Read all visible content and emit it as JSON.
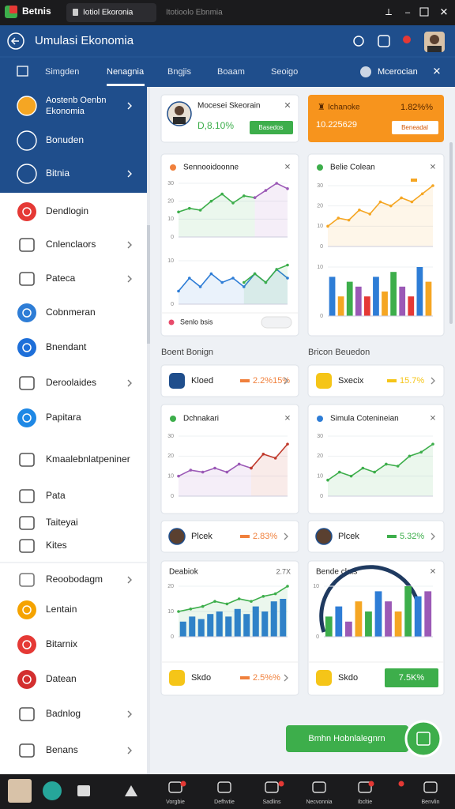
{
  "window": {
    "app": "Betnis",
    "tabs": [
      "Iotiol Ekoronia",
      "Itotioolo Ebnmia"
    ]
  },
  "header": {
    "title": "Umulasi Ekonomia"
  },
  "nav": {
    "tabs": [
      "Simgden",
      "Nenagnia",
      "Bngjis",
      "Boaam",
      "Seoigo"
    ],
    "active": 1,
    "account": "Mcerocian"
  },
  "sidebar": {
    "items": [
      {
        "label": "Aostenb Oenbn",
        "sublabel": "Ekonomia",
        "icon_color": "#f5a623",
        "chevron": true
      },
      {
        "label": "Bonuden",
        "icon_color": "#1f4e8c",
        "chevron": false
      },
      {
        "label": "Bitnia",
        "icon_color": "#1f4e8c",
        "chevron": true
      },
      {
        "label": "Dendlogin",
        "icon_color": "#e53935",
        "chevron": false
      },
      {
        "label": "Cnlenclaors",
        "icon_color": "#555555",
        "chevron": true
      },
      {
        "label": "Pateca",
        "icon_color": "#555555",
        "chevron": true
      },
      {
        "label": "Cobnmeran",
        "icon_color": "#2e7dd6",
        "chevron": false
      },
      {
        "label": "Bnendant",
        "icon_color": "#1e6fd9",
        "chevron": false
      },
      {
        "label": "Deroolaides",
        "icon_color": "#555555",
        "chevron": true
      },
      {
        "label": "Papitara",
        "icon_color": "#1e88e5",
        "chevron": false
      },
      {
        "label": "Kmaalebnlatpeniner",
        "icon_color": "#555555",
        "chevron": false
      },
      {
        "label": "Pata",
        "icon_color": "#555555",
        "chevron": false
      },
      {
        "label": "Taiteyai",
        "icon_color": "#555555",
        "chevron": false
      },
      {
        "label": "Kites",
        "icon_color": "#555555",
        "chevron": false
      },
      {
        "label": "Reoobodagm",
        "icon_color": "#777777",
        "chevron": true
      },
      {
        "label": "Lentain",
        "icon_color": "#f5a300",
        "chevron": false
      },
      {
        "label": "Bitarnix",
        "icon_color": "#e53935",
        "chevron": false
      },
      {
        "label": "Datean",
        "icon_color": "#d32f2f",
        "chevron": false
      },
      {
        "label": "Badnlog",
        "icon_color": "#555555",
        "chevron": true
      },
      {
        "label": "Benans",
        "icon_color": "#555555",
        "chevron": true
      }
    ]
  },
  "profile_card": {
    "name": "Mocesei Skeorain",
    "value": "D,8.10%",
    "button": "Basedos"
  },
  "orange_card": {
    "title": "Ichanoke",
    "change": "1.82%%",
    "value": "10.225629",
    "button": "Beneadal"
  },
  "chart_cards": [
    {
      "title": "Sennooidoonne",
      "footer": "Senlo bsis"
    },
    {
      "title": "Belie Colean"
    },
    {
      "title": "Dchnakari"
    },
    {
      "title": "Simula Cotenineian"
    },
    {
      "title": "Deabiok",
      "corner": "2.7X"
    },
    {
      "title": "Bende clats"
    }
  ],
  "sections": [
    "Boent Bonign",
    "Bricon Beuedon"
  ],
  "stat_rows": [
    {
      "label": "Kloed",
      "value": "2.2%15%",
      "color": "#f0803c"
    },
    {
      "label": "Sxecix",
      "value": "15.7%",
      "color": "#f5c518"
    },
    {
      "label": "Plcek",
      "value": "2.83%",
      "color": "#f0803c"
    },
    {
      "label": "Plcek",
      "value": "5.32%",
      "color": "#3dae4b"
    },
    {
      "label": "Skdo",
      "value": "2.5%%",
      "color": "#f0803c"
    },
    {
      "label": "Skdo",
      "value": "7.5K%",
      "color": "#3dae4b"
    }
  ],
  "charts": [
    {
      "yticks": [
        0,
        10,
        20,
        30
      ],
      "series": [
        {
          "color": "#3dae4b",
          "values": [
            14,
            16,
            15,
            20,
            24,
            19,
            23,
            22,
            null,
            null,
            null
          ]
        },
        {
          "color": "#9b59b6",
          "values": [
            null,
            null,
            null,
            null,
            null,
            null,
            null,
            22,
            26,
            30,
            27
          ]
        }
      ],
      "fill": true
    },
    {
      "yticks": [
        0,
        10
      ],
      "series": [
        {
          "color": "#2e7dd6",
          "values": [
            3,
            6,
            4,
            7,
            5,
            6,
            4,
            7,
            5,
            8,
            6
          ]
        },
        {
          "color": "#3dae4b",
          "values": [
            null,
            null,
            null,
            null,
            null,
            null,
            5,
            7,
            5,
            8,
            9
          ]
        }
      ],
      "fill": true
    },
    {
      "yticks": [
        0,
        10,
        20,
        30
      ],
      "series": [
        {
          "color": "#f5a623",
          "values": [
            10,
            14,
            13,
            18,
            16,
            22,
            20,
            24,
            22,
            26,
            30
          ]
        }
      ],
      "fill": true
    },
    {
      "yticks": [
        0,
        10
      ],
      "bars": {
        "colors": [
          "#2e7dd6",
          "#f5a623",
          "#3dae4b",
          "#9b59b6",
          "#e53935"
        ],
        "values": [
          8,
          4,
          7,
          6,
          4,
          8,
          5,
          9,
          6,
          4,
          10,
          7
        ]
      }
    },
    {
      "yticks": [
        0,
        10,
        20,
        30
      ],
      "series": [
        {
          "color": "#9b59b6",
          "values": [
            10,
            13,
            12,
            14,
            12,
            16,
            14,
            null,
            null,
            null
          ]
        },
        {
          "color": "#c0392b",
          "values": [
            null,
            null,
            null,
            null,
            null,
            null,
            14,
            21,
            19,
            26
          ]
        }
      ],
      "fill": true
    },
    {
      "yticks": [
        0,
        10,
        20,
        30
      ],
      "series": [
        {
          "color": "#3dae4b",
          "values": [
            8,
            12,
            10,
            14,
            12,
            16,
            15,
            20,
            22,
            26
          ]
        }
      ],
      "fill": true
    },
    {
      "yticks": [
        0,
        10,
        20
      ],
      "bars": {
        "colors": [
          "#2e7dd6"
        ],
        "values": [
          6,
          8,
          7,
          9,
          10,
          8,
          11,
          9,
          12,
          10,
          14,
          15
        ]
      },
      "series": [
        {
          "color": "#3dae4b",
          "values": [
            10,
            11,
            12,
            14,
            13,
            15,
            14,
            16,
            17,
            20
          ]
        }
      ],
      "fill": true
    },
    {
      "yticks": [
        0,
        10
      ],
      "bars": {
        "colors": [
          "#3dae4b",
          "#2e7dd6",
          "#9b59b6",
          "#f5a623"
        ],
        "values": [
          4,
          6,
          3,
          7,
          5,
          9,
          7,
          5,
          10,
          8,
          9
        ]
      }
    }
  ],
  "action_button": "Bmhn Hobnlalegnrn",
  "taskbar": [
    "Vorgbie",
    "Defhvtie",
    "Sadlins",
    "Necvonnia",
    "Ibcltie",
    "Benvlin"
  ]
}
